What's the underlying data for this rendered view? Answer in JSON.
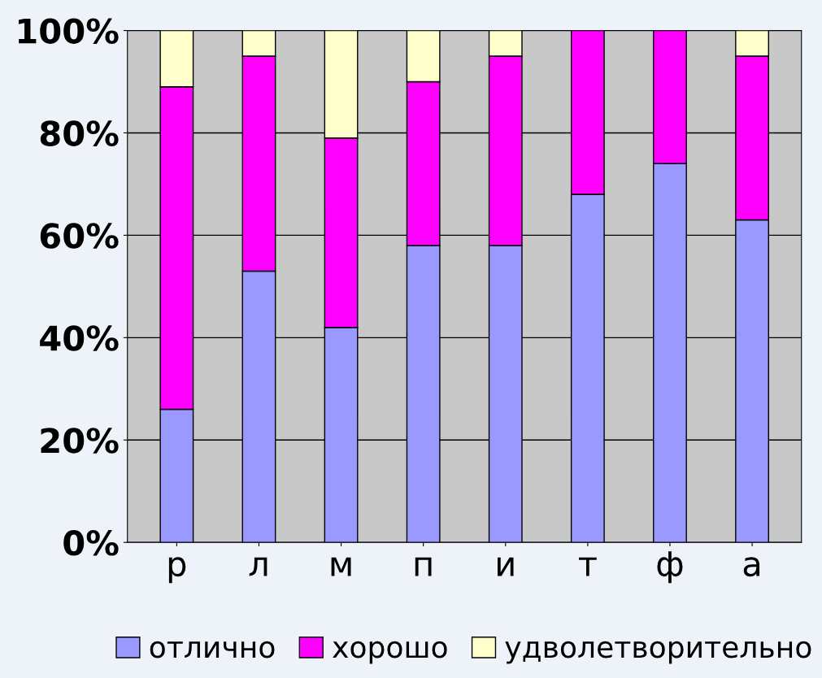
{
  "chart_data": {
    "type": "bar",
    "stacked": true,
    "categories": [
      "р",
      "л",
      "м",
      "п",
      "и",
      "т",
      "ф",
      "а"
    ],
    "series": [
      {
        "name": "отлично",
        "color": "#9999ff",
        "values": [
          26,
          53,
          42,
          58,
          58,
          68,
          74,
          63
        ]
      },
      {
        "name": "хорошо",
        "color": "#ff00ff",
        "values": [
          63,
          42,
          37,
          32,
          37,
          32,
          26,
          32
        ]
      },
      {
        "name": "удволетворительно",
        "color": "#ffffcc",
        "values": [
          11,
          5,
          21,
          10,
          5,
          0,
          0,
          5
        ]
      }
    ],
    "ylim": [
      0,
      100
    ],
    "yticks": [
      {
        "value": 0,
        "label": "0%"
      },
      {
        "value": 20,
        "label": "20%"
      },
      {
        "value": 40,
        "label": "40%"
      },
      {
        "value": 60,
        "label": "60%"
      },
      {
        "value": 80,
        "label": "80%"
      },
      {
        "value": 100,
        "label": "100%"
      }
    ],
    "grid": "y",
    "legend": "bottom"
  }
}
